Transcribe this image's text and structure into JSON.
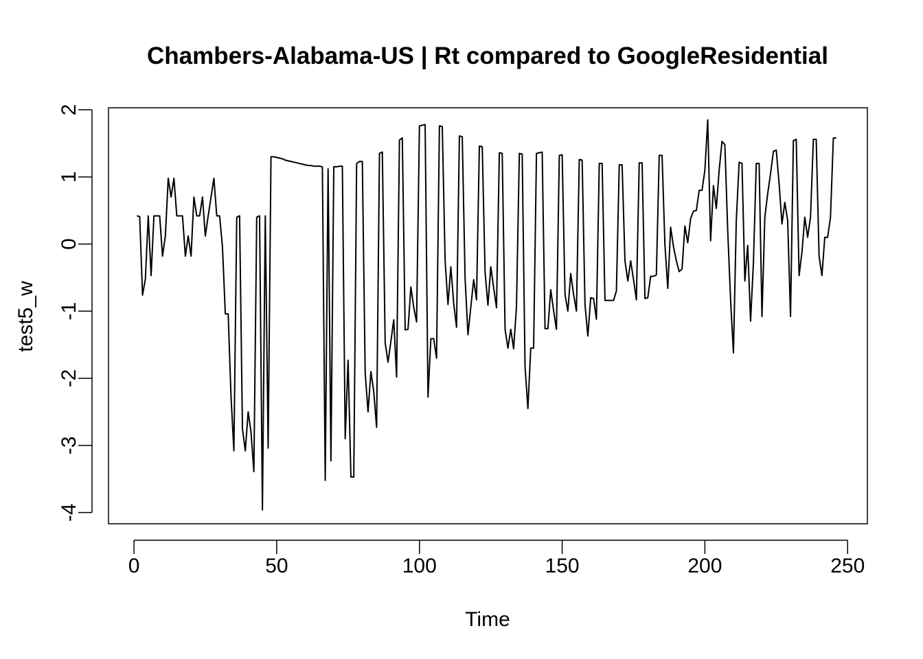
{
  "chart_data": {
    "type": "line",
    "title": "Chambers-Alabama-US | Rt compared to GoogleResidential",
    "xlabel": "Time",
    "ylabel": "test5_w",
    "xlim": [
      -8.92,
      256.92
    ],
    "ylim": [
      -4.167,
      2.03
    ],
    "x_ticks": [
      0,
      50,
      100,
      150,
      200,
      250
    ],
    "y_ticks": [
      -4,
      -3,
      -2,
      -1,
      0,
      1,
      2
    ],
    "x_tick_labels": [
      "0",
      "50",
      "100",
      "150",
      "200",
      "250"
    ],
    "y_tick_labels": [
      "-4",
      "-3",
      "-2",
      "-1",
      "0",
      "1",
      "2"
    ],
    "grid": false,
    "line_color": "#000000",
    "series": [
      {
        "x_start": 1,
        "values": [
          0.42,
          0.41,
          -0.76,
          -0.52,
          0.42,
          -0.47,
          0.42,
          0.42,
          0.42,
          -0.18,
          0.12,
          0.98,
          0.7,
          0.98,
          0.42,
          0.42,
          0.42,
          -0.18,
          0.12,
          -0.18,
          0.7,
          0.42,
          0.42,
          0.7,
          0.12,
          0.42,
          0.7,
          0.98,
          0.42,
          0.42,
          -0.04,
          -1.04,
          -1.04,
          -2.27,
          -3.08,
          0.4,
          0.42,
          -2.75,
          -3.08,
          -2.5,
          -2.8,
          -3.39,
          0.4,
          0.42,
          -3.96,
          0.42,
          -3.04,
          1.3,
          1.3,
          1.29,
          1.28,
          1.27,
          1.25,
          1.24,
          1.23,
          1.22,
          1.21,
          1.2,
          1.19,
          1.18,
          1.17,
          1.17,
          1.16,
          1.16,
          1.16,
          1.15,
          -3.52,
          1.12,
          -3.23,
          1.15,
          1.15,
          1.16,
          1.16,
          -2.9,
          -1.73,
          -3.47,
          -3.47,
          1.2,
          1.23,
          1.23,
          -1.92,
          -2.5,
          -1.9,
          -2.2,
          -2.73,
          1.35,
          1.37,
          -1.47,
          -1.76,
          -1.45,
          -1.13,
          -1.98,
          1.55,
          1.58,
          -1.28,
          -1.27,
          -0.64,
          -0.94,
          -1.16,
          1.76,
          1.77,
          1.78,
          -2.28,
          -1.41,
          -1.41,
          -1.7,
          1.76,
          1.75,
          -0.25,
          -0.9,
          -0.34,
          -0.88,
          -1.24,
          1.61,
          1.6,
          -0.52,
          -1.35,
          -0.94,
          -0.53,
          -0.83,
          1.46,
          1.45,
          -0.42,
          -0.91,
          -0.34,
          -0.65,
          -0.95,
          1.36,
          1.35,
          -1.27,
          -1.55,
          -1.27,
          -1.56,
          -0.93,
          1.35,
          1.34,
          -1.83,
          -2.45,
          -1.55,
          -1.55,
          1.35,
          1.36,
          1.37,
          -1.26,
          -1.26,
          -0.68,
          -0.99,
          -1.27,
          1.32,
          1.33,
          -0.75,
          -1.0,
          -0.44,
          -0.75,
          -1.0,
          1.26,
          1.25,
          -0.9,
          -1.37,
          -0.8,
          -0.81,
          -1.12,
          1.2,
          1.2,
          -0.84,
          -0.84,
          -0.84,
          -0.84,
          -0.7,
          1.18,
          1.18,
          -0.25,
          -0.55,
          -0.25,
          -0.53,
          -0.83,
          1.21,
          1.21,
          -0.81,
          -0.8,
          -0.48,
          -0.48,
          -0.46,
          1.32,
          1.32,
          -0.01,
          -0.66,
          0.25,
          -0.04,
          -0.25,
          -0.41,
          -0.37,
          0.27,
          0.02,
          0.38,
          0.49,
          0.5,
          0.8,
          0.8,
          1.1,
          1.85,
          0.05,
          0.87,
          0.53,
          1.1,
          1.53,
          1.48,
          0.2,
          -0.83,
          -1.62,
          0.35,
          1.22,
          1.2,
          -0.55,
          -0.02,
          -1.15,
          -0.28,
          1.2,
          1.2,
          -1.08,
          0.4,
          0.75,
          1.05,
          1.38,
          1.4,
          0.9,
          0.3,
          0.62,
          0.35,
          -1.08,
          1.54,
          1.56,
          -0.47,
          -0.12,
          0.4,
          0.1,
          0.4,
          1.56,
          1.56,
          -0.18,
          -0.47,
          0.1,
          0.1,
          0.4,
          1.58,
          1.58
        ]
      }
    ]
  }
}
